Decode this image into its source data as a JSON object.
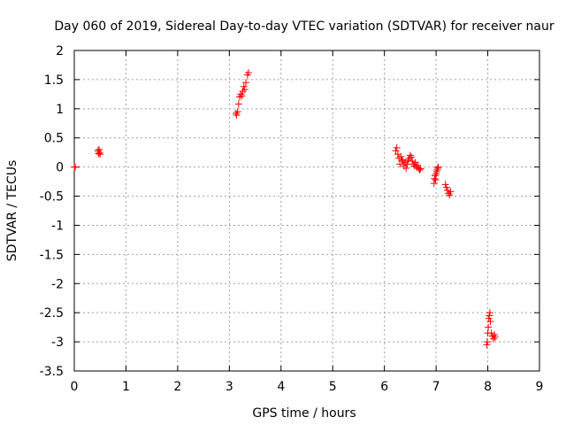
{
  "chart_data": {
    "type": "scatter",
    "title": "Day 060 of 2019, Sidereal Day-to-day VTEC variation (SDTVAR) for receiver naur",
    "xlabel": "GPS time / hours",
    "ylabel": "SDTVAR / TECUs",
    "xlim": [
      0,
      9
    ],
    "ylim": [
      -3.5,
      2
    ],
    "x_ticks": [
      0,
      1,
      2,
      3,
      4,
      5,
      6,
      7,
      8,
      9
    ],
    "x_tick_labels": [
      "0",
      "1",
      "2",
      "3",
      "4",
      "5",
      "6",
      "7",
      "8",
      "9"
    ],
    "y_ticks": [
      2,
      1.5,
      1,
      0.5,
      0,
      -0.5,
      -1,
      -1.5,
      -2,
      -2.5,
      -3,
      -3.5
    ],
    "y_tick_labels": [
      "2",
      "1.5",
      "1",
      "0.5",
      "0",
      "-0.5",
      "-1",
      "-1.5",
      "-2",
      "-2.5",
      "-3",
      "-3.5"
    ],
    "grid": true,
    "legend": "none",
    "series": [
      {
        "name": "naur",
        "color": "#ff0000",
        "marker": "plus",
        "points": [
          {
            "x": 0.0,
            "y": 0.0
          },
          {
            "x": 0.02,
            "y": 0.0
          },
          {
            "x": 0.46,
            "y": 0.28
          },
          {
            "x": 0.47,
            "y": 0.23
          },
          {
            "x": 0.48,
            "y": 0.3
          },
          {
            "x": 0.49,
            "y": 0.25
          },
          {
            "x": 0.5,
            "y": 0.22
          },
          {
            "x": 3.13,
            "y": 0.92
          },
          {
            "x": 3.14,
            "y": 0.89
          },
          {
            "x": 3.16,
            "y": 0.95
          },
          {
            "x": 3.18,
            "y": 1.08
          },
          {
            "x": 3.2,
            "y": 1.2
          },
          {
            "x": 3.22,
            "y": 1.25
          },
          {
            "x": 3.24,
            "y": 1.22
          },
          {
            "x": 3.26,
            "y": 1.3
          },
          {
            "x": 3.28,
            "y": 1.38
          },
          {
            "x": 3.3,
            "y": 1.33
          },
          {
            "x": 3.32,
            "y": 1.45
          },
          {
            "x": 3.35,
            "y": 1.58
          },
          {
            "x": 3.37,
            "y": 1.62
          },
          {
            "x": 6.22,
            "y": 0.28
          },
          {
            "x": 6.24,
            "y": 0.33
          },
          {
            "x": 6.26,
            "y": 0.22
          },
          {
            "x": 6.28,
            "y": 0.15
          },
          {
            "x": 6.3,
            "y": 0.05
          },
          {
            "x": 6.32,
            "y": 0.18
          },
          {
            "x": 6.34,
            "y": 0.12
          },
          {
            "x": 6.36,
            "y": 0.1
          },
          {
            "x": 6.38,
            "y": 0.02
          },
          {
            "x": 6.4,
            "y": 0.08
          },
          {
            "x": 6.42,
            "y": -0.02
          },
          {
            "x": 6.44,
            "y": 0.05
          },
          {
            "x": 6.46,
            "y": 0.12
          },
          {
            "x": 6.48,
            "y": 0.15
          },
          {
            "x": 6.5,
            "y": 0.2
          },
          {
            "x": 6.52,
            "y": 0.17
          },
          {
            "x": 6.54,
            "y": 0.1
          },
          {
            "x": 6.56,
            "y": 0.05
          },
          {
            "x": 6.58,
            "y": 0.02
          },
          {
            "x": 6.6,
            "y": 0.08
          },
          {
            "x": 6.62,
            "y": 0.0
          },
          {
            "x": 6.64,
            "y": 0.03
          },
          {
            "x": 6.66,
            "y": -0.02
          },
          {
            "x": 6.68,
            "y": -0.05
          },
          {
            "x": 6.7,
            "y": -0.03
          },
          {
            "x": 6.96,
            "y": -0.28
          },
          {
            "x": 6.97,
            "y": -0.2
          },
          {
            "x": 6.98,
            "y": -0.15
          },
          {
            "x": 6.99,
            "y": -0.22
          },
          {
            "x": 7.0,
            "y": -0.12
          },
          {
            "x": 7.01,
            "y": -0.08
          },
          {
            "x": 7.02,
            "y": -0.05
          },
          {
            "x": 7.03,
            "y": -0.02
          },
          {
            "x": 7.04,
            "y": 0.0
          },
          {
            "x": 7.18,
            "y": -0.3
          },
          {
            "x": 7.2,
            "y": -0.35
          },
          {
            "x": 7.22,
            "y": -0.4
          },
          {
            "x": 7.24,
            "y": -0.45
          },
          {
            "x": 7.26,
            "y": -0.48
          },
          {
            "x": 7.28,
            "y": -0.42
          },
          {
            "x": 7.98,
            "y": -3.05
          },
          {
            "x": 7.99,
            "y": -3.0
          },
          {
            "x": 8.0,
            "y": -2.85
          },
          {
            "x": 8.01,
            "y": -2.75
          },
          {
            "x": 8.02,
            "y": -2.6
          },
          {
            "x": 8.03,
            "y": -2.55
          },
          {
            "x": 8.04,
            "y": -2.5
          },
          {
            "x": 8.05,
            "y": -2.65
          },
          {
            "x": 8.07,
            "y": -2.85
          },
          {
            "x": 8.09,
            "y": -2.9
          },
          {
            "x": 8.11,
            "y": -2.95
          },
          {
            "x": 8.13,
            "y": -2.88
          },
          {
            "x": 8.14,
            "y": -2.92
          }
        ]
      }
    ]
  }
}
